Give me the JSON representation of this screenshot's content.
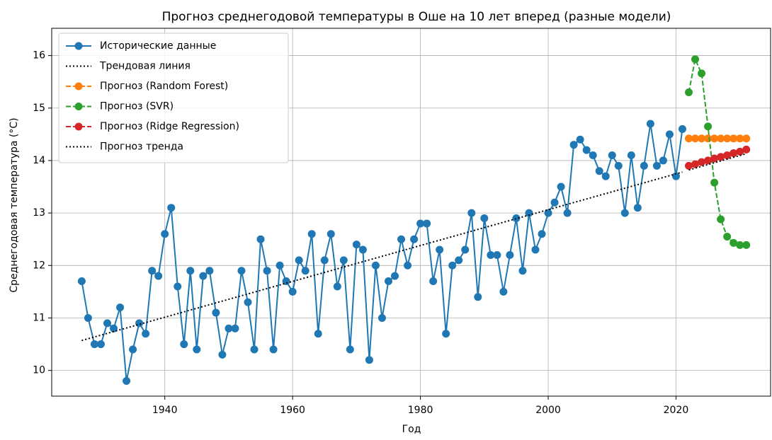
{
  "chart_data": {
    "type": "line",
    "title": "Прогноз среднегодовой температуры в Оше на 10 лет вперед (разные модели)",
    "xlabel": "Год",
    "ylabel": "Среднегодовая температура (°C)",
    "xlim": [
      1922.3,
      2034.8
    ],
    "ylim": [
      9.51,
      16.52
    ],
    "xticks": [
      1940,
      1960,
      1980,
      2000,
      2020
    ],
    "yticks": [
      10,
      11,
      12,
      13,
      14,
      15,
      16
    ],
    "grid": true,
    "legend": "upper left",
    "series": [
      {
        "name": "Исторические данные",
        "color": "#1f77b4",
        "style": "solid",
        "marker": true,
        "x": [
          1927,
          1928,
          1929,
          1930,
          1931,
          1932,
          1933,
          1934,
          1935,
          1936,
          1937,
          1938,
          1939,
          1940,
          1941,
          1942,
          1943,
          1944,
          1945,
          1946,
          1947,
          1948,
          1949,
          1950,
          1951,
          1952,
          1953,
          1954,
          1955,
          1956,
          1957,
          1958,
          1959,
          1960,
          1961,
          1962,
          1963,
          1964,
          1965,
          1966,
          1967,
          1968,
          1969,
          1970,
          1971,
          1972,
          1973,
          1974,
          1975,
          1976,
          1977,
          1978,
          1979,
          1980,
          1981,
          1982,
          1983,
          1984,
          1985,
          1986,
          1987,
          1988,
          1989,
          1990,
          1991,
          1992,
          1993,
          1994,
          1995,
          1996,
          1997,
          1998,
          1999,
          2000,
          2001,
          2002,
          2003,
          2004,
          2005,
          2006,
          2007,
          2008,
          2009,
          2010,
          2011,
          2012,
          2013,
          2014,
          2015,
          2016,
          2017,
          2018,
          2019,
          2020,
          2021
        ],
        "values": [
          11.7,
          11.0,
          10.5,
          10.5,
          10.9,
          10.8,
          11.2,
          9.8,
          10.4,
          10.9,
          10.7,
          11.9,
          11.8,
          12.6,
          13.1,
          11.6,
          10.5,
          11.9,
          10.4,
          11.8,
          11.9,
          11.1,
          10.3,
          10.8,
          10.8,
          11.9,
          11.3,
          10.4,
          12.5,
          11.9,
          10.4,
          12.0,
          11.7,
          11.5,
          12.1,
          11.9,
          12.6,
          10.7,
          12.1,
          12.6,
          11.6,
          12.1,
          10.4,
          12.4,
          12.3,
          10.2,
          12.0,
          11.0,
          11.7,
          11.8,
          12.5,
          12.0,
          12.5,
          12.8,
          12.8,
          11.7,
          12.3,
          10.7,
          12.0,
          12.1,
          12.3,
          13.0,
          11.4,
          12.9,
          12.2,
          12.2,
          11.5,
          12.2,
          12.9,
          11.9,
          13.0,
          12.3,
          12.6,
          13.0,
          13.2,
          13.5,
          13.0,
          14.3,
          14.4,
          14.2,
          14.1,
          13.8,
          13.7,
          14.1,
          13.9,
          13.0,
          14.1,
          13.1,
          13.9,
          14.7,
          13.9,
          14.0,
          14.5,
          13.7,
          14.6
        ]
      },
      {
        "name": "Трендовая линия",
        "color": "#000000",
        "style": "dotted",
        "marker": false,
        "x": [
          1927,
          2021
        ],
        "values": [
          10.57,
          13.78
        ]
      },
      {
        "name": "Прогноз (Random Forest)",
        "color": "#ff7f0e",
        "style": "dashed",
        "marker": true,
        "x": [
          2022,
          2023,
          2024,
          2025,
          2026,
          2027,
          2028,
          2029,
          2030,
          2031
        ],
        "values": [
          14.42,
          14.42,
          14.42,
          14.42,
          14.42,
          14.42,
          14.42,
          14.42,
          14.42,
          14.42
        ]
      },
      {
        "name": "Прогноз (SVR)",
        "color": "#2ca02c",
        "style": "dashed",
        "marker": true,
        "x": [
          2022,
          2023,
          2024,
          2025,
          2026,
          2027,
          2028,
          2029,
          2030,
          2031
        ],
        "values": [
          15.3,
          15.93,
          15.66,
          14.65,
          13.58,
          12.88,
          12.55,
          12.43,
          12.39,
          12.39
        ]
      },
      {
        "name": "Прогноз (Ridge Regression)",
        "color": "#d62728",
        "style": "dashed",
        "marker": true,
        "x": [
          2022,
          2023,
          2024,
          2025,
          2026,
          2027,
          2028,
          2029,
          2030,
          2031
        ],
        "values": [
          13.9,
          13.93,
          13.97,
          14.0,
          14.04,
          14.07,
          14.1,
          14.14,
          14.17,
          14.21
        ]
      },
      {
        "name": "Прогноз тренда",
        "color": "#000000",
        "style": "dotted",
        "marker": false,
        "x": [
          2022,
          2031
        ],
        "values": [
          13.82,
          14.13
        ]
      }
    ]
  }
}
